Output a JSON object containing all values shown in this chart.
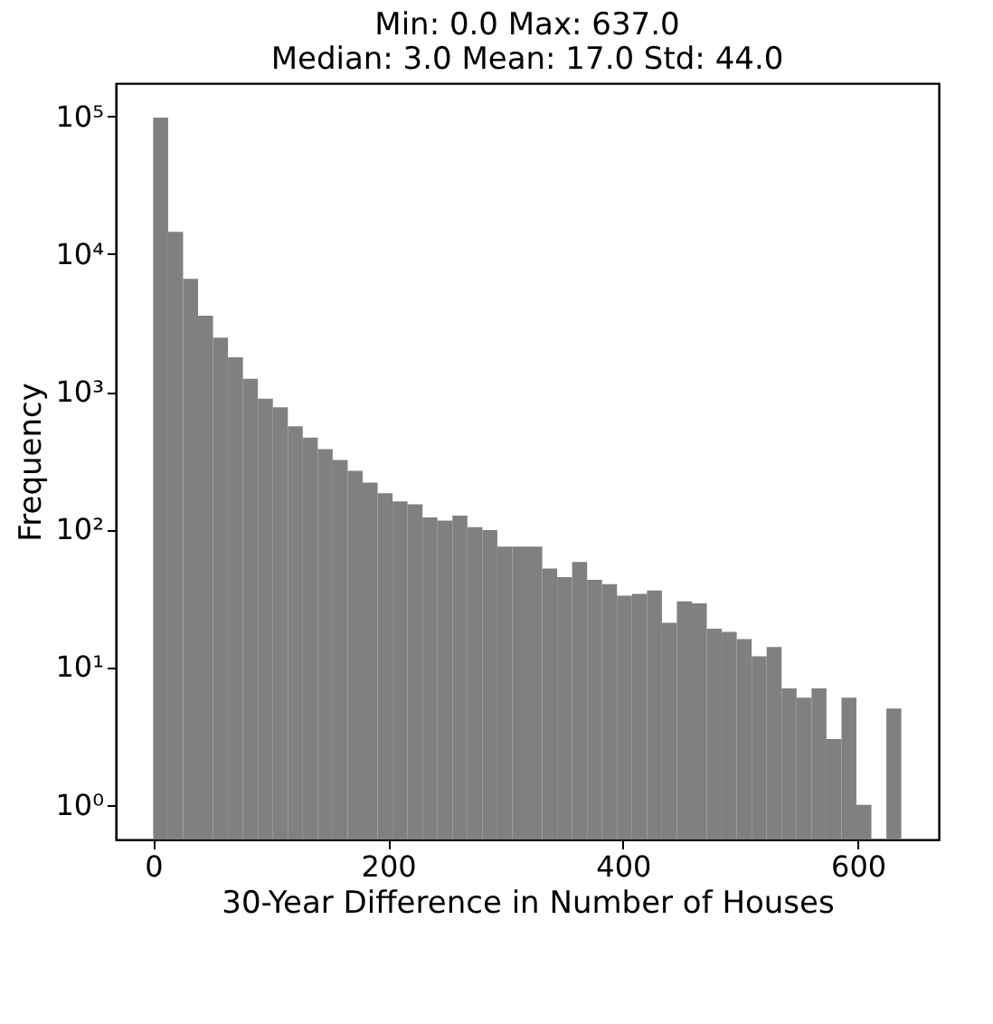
{
  "chart_data": {
    "type": "histogram",
    "title": [
      "Min: 0.0 Max: 637.0",
      "Median: 3.0 Mean: 17.0 Std: 44.0"
    ],
    "xlabel": "30-Year Difference in Number of Houses",
    "ylabel": "Frequency",
    "bins": [
      0,
      12.74,
      25.48,
      38.22,
      50.96,
      63.7,
      76.44,
      89.18,
      101.92,
      114.66,
      127.4,
      140.14,
      152.88,
      165.62,
      178.36,
      191.1,
      203.84,
      216.58,
      229.32,
      242.06,
      254.8,
      267.54,
      280.28,
      293.02,
      305.76,
      318.5,
      331.24,
      343.98,
      356.72,
      369.46,
      382.2,
      394.94,
      407.68,
      420.42,
      433.16,
      445.9,
      458.64,
      471.38,
      484.12,
      496.86,
      509.6,
      522.34,
      535.08,
      547.82,
      560.56,
      573.3,
      586.04,
      598.78,
      611.52,
      624.26,
      637
    ],
    "values": [
      98000,
      14500,
      6600,
      3560,
      2470,
      1780,
      1240,
      890,
      770,
      560,
      465,
      383,
      319,
      266,
      219,
      183,
      160,
      152,
      122,
      116,
      126,
      104,
      99,
      75,
      75,
      75,
      52,
      45,
      58,
      43,
      40,
      33,
      34,
      36,
      21,
      30,
      29,
      19,
      18,
      16,
      12,
      14,
      7,
      6,
      7,
      3,
      6,
      1,
      null,
      5
    ],
    "color": "#808080",
    "log": "y",
    "xlim": [
      -31.85,
      668.85
    ],
    "xticks": [
      0,
      200,
      400,
      600
    ],
    "ylim": [
      0.56,
      174000
    ],
    "yticks": [
      {
        "value": 1,
        "label": "10⁰"
      },
      {
        "value": 10,
        "label": "10¹"
      },
      {
        "value": 100,
        "label": "10²"
      },
      {
        "value": 1000,
        "label": "10³"
      },
      {
        "value": 10000,
        "label": "10⁴"
      },
      {
        "value": 100000,
        "label": "10⁵"
      }
    ],
    "grid": false
  }
}
